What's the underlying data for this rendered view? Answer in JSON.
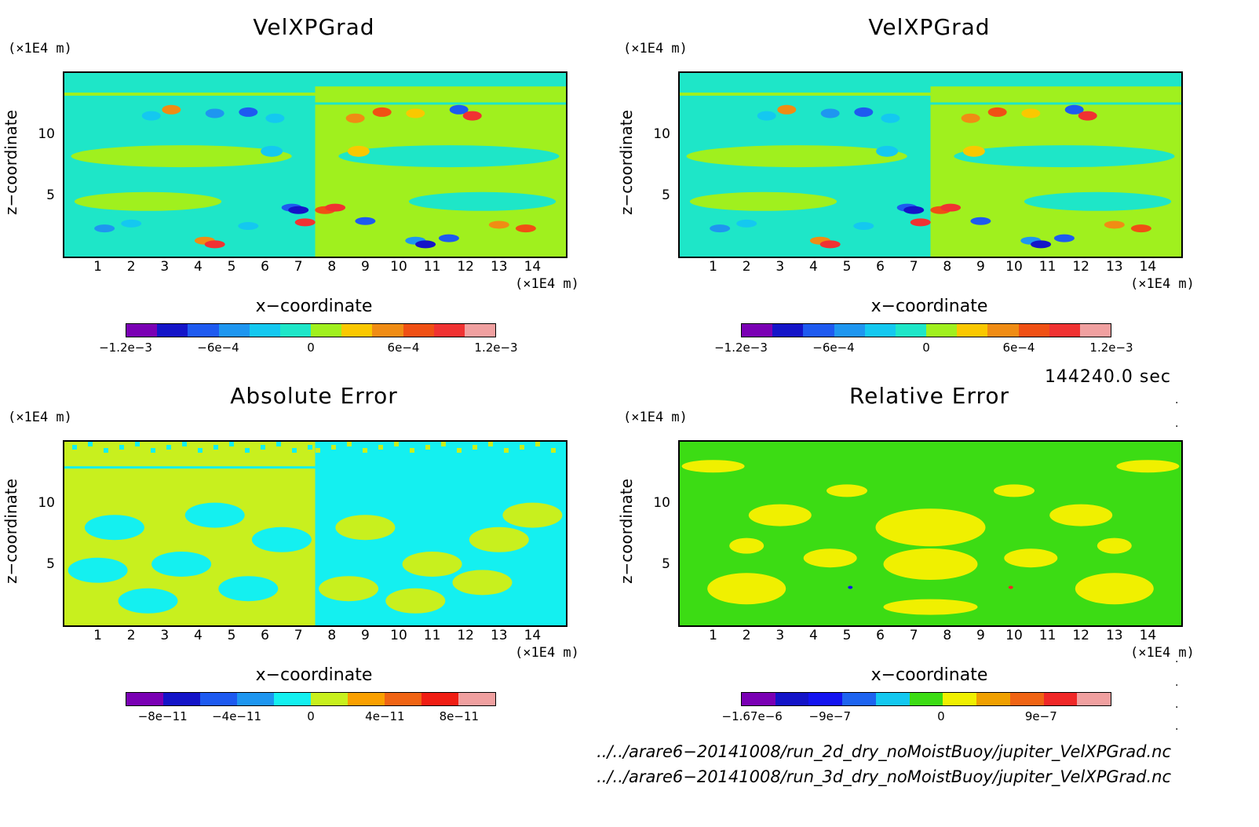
{
  "panels": [
    {
      "title": "VelXPGrad",
      "y_unit": "(×1E4 m)",
      "x_unit": "(×1E4 m)",
      "xlabel": "x−coordinate",
      "ylabel": "z−coordinate",
      "colors": [
        "#7a00b4",
        "#1414c8",
        "#1e5af0",
        "#1e96f0",
        "#14c8f0",
        "#1ee6c8",
        "#a0f01e",
        "#fac800",
        "#f08c14",
        "#f05014",
        "#f03232",
        "#f0a0a0"
      ],
      "colorbar_labels": [
        {
          "text": "−1.2e−3",
          "pos": 0
        },
        {
          "text": "−6e−4",
          "pos": 0.25
        },
        {
          "text": "0",
          "pos": 0.5
        },
        {
          "text": "6e−4",
          "pos": 0.75
        },
        {
          "text": "1.2e−3",
          "pos": 1
        }
      ]
    },
    {
      "title": "VelXPGrad",
      "y_unit": "(×1E4 m)",
      "x_unit": "(×1E4 m)",
      "xlabel": "x−coordinate",
      "ylabel": "z−coordinate",
      "colors": [
        "#7a00b4",
        "#1414c8",
        "#1e5af0",
        "#1e96f0",
        "#14c8f0",
        "#1ee6c8",
        "#a0f01e",
        "#fac800",
        "#f08c14",
        "#f05014",
        "#f03232",
        "#f0a0a0"
      ],
      "colorbar_labels": [
        {
          "text": "−1.2e−3",
          "pos": 0
        },
        {
          "text": "−6e−4",
          "pos": 0.25
        },
        {
          "text": "0",
          "pos": 0.5
        },
        {
          "text": "6e−4",
          "pos": 0.75
        },
        {
          "text": "1.2e−3",
          "pos": 1
        }
      ]
    },
    {
      "title": "Absolute Error",
      "y_unit": "(×1E4 m)",
      "x_unit": "(×1E4 m)",
      "xlabel": "x−coordinate",
      "ylabel": "z−coordinate",
      "colors": [
        "#7a00b4",
        "#1414c8",
        "#1e5af0",
        "#1e96f0",
        "#14f0f0",
        "#c8f01e",
        "#faa000",
        "#f06414",
        "#f01e14",
        "#f0a0a0"
      ],
      "colorbar_labels": [
        {
          "text": "−8e−11",
          "pos": 0.1
        },
        {
          "text": "−4e−11",
          "pos": 0.3
        },
        {
          "text": "0",
          "pos": 0.5
        },
        {
          "text": "4e−11",
          "pos": 0.7
        },
        {
          "text": "8e−11",
          "pos": 0.9
        }
      ]
    },
    {
      "title": "Relative Error",
      "y_unit": "(×1E4 m)",
      "x_unit": "(×1E4 m)",
      "xlabel": "x−coordinate",
      "ylabel": "z−coordinate",
      "colors": [
        "#7a00b4",
        "#1414c8",
        "#1414f0",
        "#1e64f0",
        "#14c8f0",
        "#3cdc14",
        "#f0f000",
        "#f0a000",
        "#f06414",
        "#f02828",
        "#f0a0a0"
      ],
      "colorbar_labels": [
        {
          "text": "−1.67e−6",
          "pos": 0.03
        },
        {
          "text": "−9e−7",
          "pos": 0.24
        },
        {
          "text": "0",
          "pos": 0.54
        },
        {
          "text": "9e−7",
          "pos": 0.81
        }
      ]
    }
  ],
  "x_ticks": [
    "1",
    "2",
    "3",
    "4",
    "5",
    "6",
    "7",
    "8",
    "9",
    "10",
    "11",
    "12",
    "13",
    "14"
  ],
  "y_ticks": [
    "5",
    "10"
  ],
  "timestamp": "144240.0 sec",
  "file_paths": [
    "../../arare6−20141008/run_2d_dry_noMoistBuoy/jupiter_VelXPGrad.nc",
    "../../arare6−20141008/run_3d_dry_noMoistBuoy/jupiter_VelXPGrad.nc"
  ],
  "chart_data": [
    {
      "type": "heatmap",
      "title": "VelXPGrad",
      "xlabel": "x−coordinate",
      "ylabel": "z−coordinate",
      "xlim": [
        0,
        15
      ],
      "ylim": [
        0,
        15
      ],
      "x_unit": "×1E4 m",
      "y_unit": "×1E4 m",
      "colorbar_range": [
        -0.0012,
        0.0012
      ]
    },
    {
      "type": "heatmap",
      "title": "VelXPGrad",
      "xlabel": "x−coordinate",
      "ylabel": "z−coordinate",
      "xlim": [
        0,
        15
      ],
      "ylim": [
        0,
        15
      ],
      "x_unit": "×1E4 m",
      "y_unit": "×1E4 m",
      "colorbar_range": [
        -0.0012,
        0.0012
      ]
    },
    {
      "type": "heatmap",
      "title": "Absolute Error",
      "xlabel": "x−coordinate",
      "ylabel": "z−coordinate",
      "xlim": [
        0,
        15
      ],
      "ylim": [
        0,
        15
      ],
      "x_unit": "×1E4 m",
      "y_unit": "×1E4 m",
      "colorbar_range": [
        -1e-10,
        1e-10
      ]
    },
    {
      "type": "heatmap",
      "title": "Relative Error",
      "xlabel": "x−coordinate",
      "ylabel": "z−coordinate",
      "xlim": [
        0,
        15
      ],
      "ylim": [
        0,
        15
      ],
      "x_unit": "×1E4 m",
      "y_unit": "×1E4 m",
      "colorbar_range": [
        -1.67e-06,
        1.5e-06
      ]
    }
  ]
}
